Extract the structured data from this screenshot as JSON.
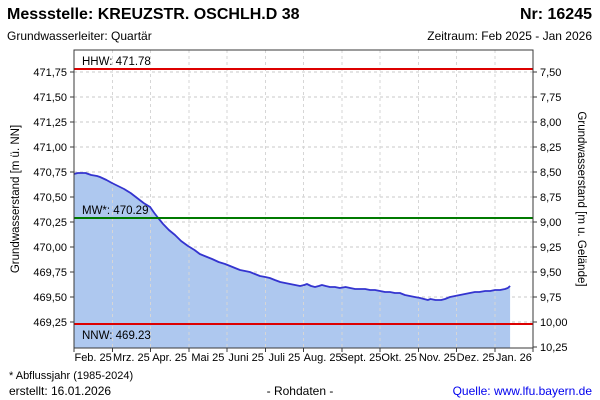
{
  "header": {
    "station_label": "Messstelle: KREUZSTR. OSCHLH.D 38",
    "number_label": "Nr: 16245",
    "aquifer": "Grundwasserleiter: Quartär",
    "period": "Zeitraum: Feb 2025 - Jan 2026"
  },
  "footer": {
    "footnote": "* Abflussjahr (1985-2024)",
    "created": "erstellt: 16.01.2026",
    "center": "- Rohdaten -",
    "source": "Quelle: www.lfu.bayern.de"
  },
  "chart_data": {
    "type": "area",
    "ylim_left": [
      468.99,
      471.97
    ],
    "right_axis_offset": 479.25,
    "colors": {
      "grid": "#c9c9c9",
      "grid_over_fill": "#d6d6d6",
      "frame": "#3a3a3a",
      "line": "#3434cf",
      "fill": "#aec8ef",
      "hhw_nnw": "#dd0000",
      "mw": "#007a00",
      "link": "#0000ee"
    },
    "axes": {
      "left": {
        "title": "Grundwasserstand [m ü. NN]",
        "tick_values": [
          471.75,
          471.5,
          471.25,
          471.0,
          470.75,
          470.5,
          470.25,
          470.0,
          469.75,
          469.5,
          469.25
        ],
        "tick_labels": [
          "471,75",
          "471,50",
          "471,25",
          "471,00",
          "470,75",
          "470,50",
          "470,25",
          "470,00",
          "469,75",
          "469,50",
          "469,25"
        ]
      },
      "right": {
        "title": "Grundwasserstand [m u. Gelände]",
        "tick_values": [
          7.5,
          7.75,
          8.0,
          8.25,
          8.5,
          8.75,
          9.0,
          9.25,
          9.5,
          9.75,
          10.0,
          10.25
        ],
        "tick_labels": [
          "7,50",
          "7,75",
          "8,00",
          "8,25",
          "8,50",
          "8,75",
          "9,00",
          "9,25",
          "9,50",
          "9,75",
          "10,00",
          "10,25"
        ]
      },
      "x": {
        "labels": [
          "Feb. 25",
          "Mrz. 25",
          "Apr. 25",
          "Mai 25",
          "Juni 25",
          "Juli 25",
          "Aug. 25",
          "Sept. 25",
          "Okt. 25",
          "Nov. 25",
          "Dez. 25",
          "Jan. 26"
        ]
      }
    },
    "reference_lines": [
      {
        "id": "hhw",
        "label": "HHW: 471.78",
        "value": 471.78,
        "color": "#dd0000",
        "label_side": "above"
      },
      {
        "id": "mw",
        "label": "MW*: 470.29",
        "value": 470.29,
        "color": "#007a00",
        "label_side": "above"
      },
      {
        "id": "nnw",
        "label": "NNW: 469.23",
        "value": 469.23,
        "color": "#dd0000",
        "label_side": "below"
      }
    ],
    "series": [
      {
        "name": "Rohdaten",
        "line_color": "#3434cf",
        "fill_color": "#aec8ef",
        "points": [
          [
            0.0,
            470.73
          ],
          [
            0.1,
            470.74
          ],
          [
            0.3,
            470.74
          ],
          [
            0.45,
            470.72
          ],
          [
            0.6,
            470.71
          ],
          [
            0.68,
            470.7
          ],
          [
            0.85,
            470.67
          ],
          [
            0.99,
            470.64
          ],
          [
            1.15,
            470.61
          ],
          [
            1.31,
            470.58
          ],
          [
            1.48,
            470.54
          ],
          [
            1.65,
            470.49
          ],
          [
            1.82,
            470.44
          ],
          [
            1.99,
            470.4
          ],
          [
            2.1,
            470.34
          ],
          [
            2.2,
            470.29
          ],
          [
            2.33,
            470.23
          ],
          [
            2.48,
            470.17
          ],
          [
            2.64,
            470.12
          ],
          [
            2.8,
            470.06
          ],
          [
            2.98,
            470.01
          ],
          [
            3.15,
            469.97
          ],
          [
            3.29,
            469.93
          ],
          [
            3.48,
            469.9
          ],
          [
            3.61,
            469.88
          ],
          [
            3.78,
            469.85
          ],
          [
            3.95,
            469.83
          ],
          [
            4.08,
            469.81
          ],
          [
            4.21,
            469.79
          ],
          [
            4.34,
            469.77
          ],
          [
            4.47,
            469.76
          ],
          [
            4.6,
            469.75
          ],
          [
            4.73,
            469.73
          ],
          [
            4.86,
            469.71
          ],
          [
            5.0,
            469.7
          ],
          [
            5.12,
            469.69
          ],
          [
            5.25,
            469.67
          ],
          [
            5.39,
            469.65
          ],
          [
            5.52,
            469.64
          ],
          [
            5.65,
            469.63
          ],
          [
            5.78,
            469.62
          ],
          [
            5.91,
            469.61
          ],
          [
            6.02,
            469.62
          ],
          [
            6.09,
            469.63
          ],
          [
            6.2,
            469.61
          ],
          [
            6.3,
            469.6
          ],
          [
            6.4,
            469.61
          ],
          [
            6.48,
            469.62
          ],
          [
            6.58,
            469.61
          ],
          [
            6.69,
            469.6
          ],
          [
            6.82,
            469.6
          ],
          [
            6.95,
            469.59
          ],
          [
            7.1,
            469.6
          ],
          [
            7.22,
            469.59
          ],
          [
            7.35,
            469.58
          ],
          [
            7.48,
            469.58
          ],
          [
            7.61,
            469.58
          ],
          [
            7.74,
            469.57
          ],
          [
            7.87,
            469.57
          ],
          [
            8.0,
            469.56
          ],
          [
            8.13,
            469.55
          ],
          [
            8.26,
            469.55
          ],
          [
            8.39,
            469.54
          ],
          [
            8.52,
            469.54
          ],
          [
            8.65,
            469.52
          ],
          [
            8.78,
            469.51
          ],
          [
            8.91,
            469.5
          ],
          [
            9.05,
            469.49
          ],
          [
            9.15,
            469.48
          ],
          [
            9.25,
            469.47
          ],
          [
            9.32,
            469.48
          ],
          [
            9.45,
            469.47
          ],
          [
            9.52,
            469.47
          ],
          [
            9.6,
            469.47
          ],
          [
            9.7,
            469.48
          ],
          [
            9.83,
            469.5
          ],
          [
            9.96,
            469.51
          ],
          [
            10.09,
            469.52
          ],
          [
            10.22,
            469.53
          ],
          [
            10.35,
            469.54
          ],
          [
            10.48,
            469.55
          ],
          [
            10.6,
            469.55
          ],
          [
            10.75,
            469.56
          ],
          [
            10.88,
            469.56
          ],
          [
            11.01,
            469.57
          ],
          [
            11.14,
            469.57
          ],
          [
            11.27,
            469.58
          ],
          [
            11.34,
            469.59
          ],
          [
            11.4,
            469.61
          ]
        ]
      }
    ]
  }
}
